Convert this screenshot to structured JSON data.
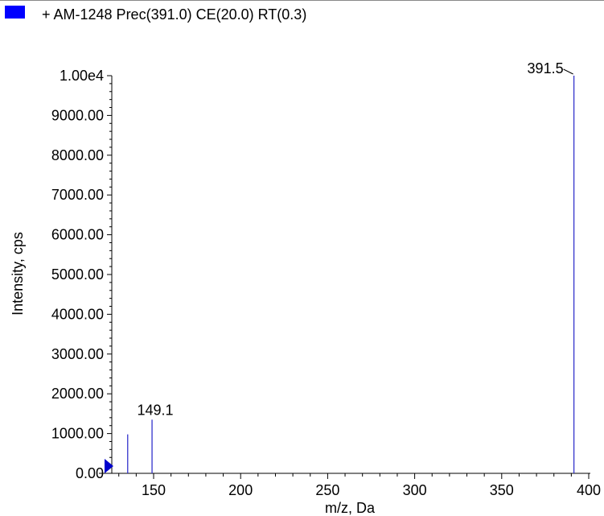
{
  "legend": {
    "color": "#0000ff",
    "text": "+ AM-1248 Prec(391.0) CE(20.0) RT(0.3)"
  },
  "chart_data": {
    "type": "bar",
    "title": "+ AM-1248 Prec(391.0) CE(20.0) RT(0.3)",
    "xlabel": "m/z, Da",
    "ylabel": "Intensity, cps",
    "xlim": [
      121,
      401
    ],
    "ylim": [
      0,
      10000
    ],
    "xticks": [
      150,
      200,
      250,
      300,
      350,
      400
    ],
    "yticks": [
      0,
      1000,
      2000,
      3000,
      4000,
      5000,
      6000,
      7000,
      8000,
      9000,
      10000
    ],
    "ytick_labels": [
      "0.00",
      "1000.00",
      "2000.00",
      "3000.00",
      "4000.00",
      "5000.00",
      "6000.00",
      "7000.00",
      "8000.00",
      "9000.00",
      "1.00e4"
    ],
    "series_color": "#3333cc",
    "peaks": [
      {
        "mz": 135.1,
        "intensity": 980,
        "label": ""
      },
      {
        "mz": 149.1,
        "intensity": 1350,
        "label": "149.1"
      },
      {
        "mz": 391.5,
        "intensity": 10000,
        "label": "391.5"
      }
    ],
    "marker_color": "#0000cc"
  }
}
